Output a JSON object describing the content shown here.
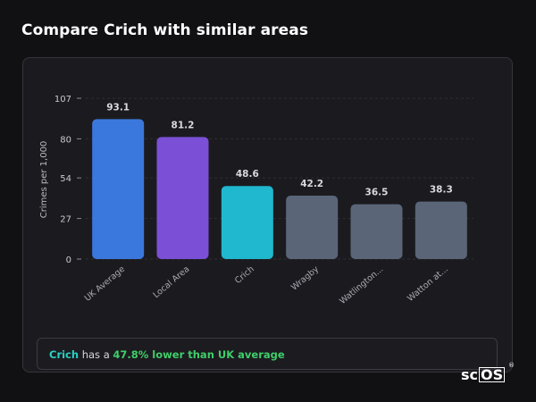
{
  "page": {
    "title": "Compare Crich with similar areas"
  },
  "chart_data": {
    "type": "bar",
    "title": "",
    "xlabel": "",
    "ylabel": "Crimes per 1,000",
    "ylim": [
      0,
      107
    ],
    "yticks": [
      0,
      27,
      54,
      80,
      107
    ],
    "grid": true,
    "categories": [
      "UK Average",
      "Local Area",
      "Crich",
      "Wragby",
      "Watlington...",
      "Watton at..."
    ],
    "values": [
      93.1,
      81.2,
      48.6,
      42.2,
      36.5,
      38.3
    ],
    "value_labels": [
      "93.1",
      "81.2",
      "48.6",
      "42.2",
      "36.5",
      "38.3"
    ],
    "bar_colors": [
      "#3b78dd",
      "#7b4fd6",
      "#1fb8cf",
      "#5a6578",
      "#5a6578",
      "#5a6578"
    ]
  },
  "summary": {
    "area": "Crich",
    "middle": " has a ",
    "stat": "47.8% lower than UK average"
  },
  "brand": {
    "left": "sc",
    "box": "OS",
    "reg": "®"
  }
}
